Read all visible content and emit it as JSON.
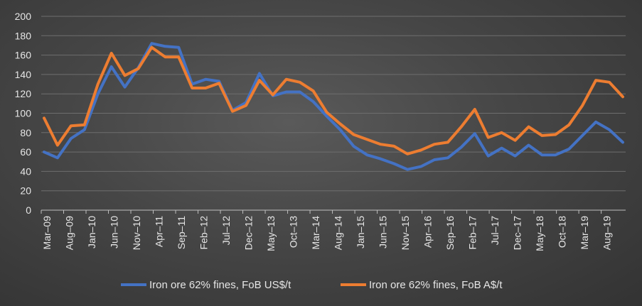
{
  "chart_data": {
    "type": "line",
    "ylim": [
      0,
      200
    ],
    "y_ticks": [
      0,
      20,
      40,
      60,
      80,
      100,
      120,
      140,
      160,
      180,
      200
    ],
    "grid": "horizontal",
    "legend_position": "bottom",
    "x_ticks": [
      "Mar–09",
      "Aug–09",
      "Jan–10",
      "Jun–10",
      "Nov–10",
      "Apr–11",
      "Sep–11",
      "Feb–12",
      "Jul–12",
      "Dec–12",
      "May–13",
      "Oct–13",
      "Mar–14",
      "Aug–14",
      "Jan–15",
      "Jun–15",
      "Nov–15",
      "Apr–16",
      "Sep–16",
      "Feb–17",
      "Jul–17",
      "Dec–17",
      "May–18",
      "Oct–18",
      "Mar–19",
      "Aug–19"
    ],
    "series": [
      {
        "name": "Iron ore 62% fines, FoB US$/t",
        "color": "#4472C4",
        "values": [
          60,
          54,
          74,
          83,
          120,
          148,
          127,
          147,
          172,
          169,
          168,
          130,
          135,
          133,
          103,
          111,
          141,
          118,
          122,
          122,
          112,
          97,
          83,
          66,
          57,
          53,
          48,
          42,
          45,
          52,
          54,
          65,
          79,
          56,
          64,
          56,
          67,
          57,
          57,
          63,
          77,
          91,
          83,
          70
        ]
      },
      {
        "name": "Iron ore 62% fines, FoB A$/t",
        "color": "#ED7D31",
        "values": [
          95,
          67,
          87,
          88,
          130,
          162,
          139,
          146,
          168,
          158,
          158,
          126,
          126,
          131,
          102,
          108,
          134,
          119,
          135,
          132,
          123,
          101,
          89,
          78,
          73,
          68,
          66,
          58,
          62,
          68,
          70,
          86,
          104,
          75,
          80,
          72,
          86,
          77,
          78,
          88,
          108,
          134,
          132,
          117
        ]
      }
    ]
  }
}
